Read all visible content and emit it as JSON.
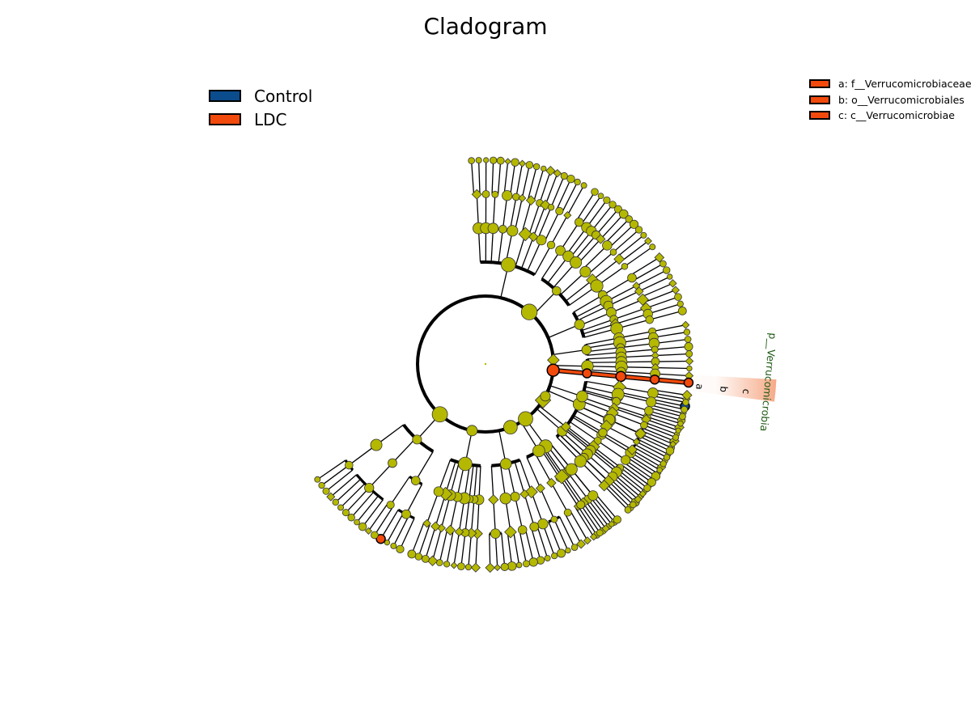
{
  "title": "Cladogram",
  "legend": [
    {
      "label": "Control",
      "color": "#0b4c8c"
    },
    {
      "label": "LDC",
      "color": "#f24a0c"
    }
  ],
  "clade_labels": [
    {
      "letter": "a",
      "text": "a: f__Verrucomicrobiaceae",
      "color": "#f24a0c"
    },
    {
      "letter": "b",
      "text": "b: o__Verrucomicrobiales",
      "color": "#f24a0c"
    },
    {
      "letter": "c",
      "text": "c: c__Verrucomicrobiae",
      "color": "#f24a0c"
    }
  ],
  "phylum_label": "p__Verrucomicrobia",
  "colors": {
    "node": "#b5b800",
    "control": "#0b4c8c",
    "ldc": "#f24a0c",
    "highlight_band": "#f5a07a",
    "phylum_text": "#1f5a14"
  }
}
